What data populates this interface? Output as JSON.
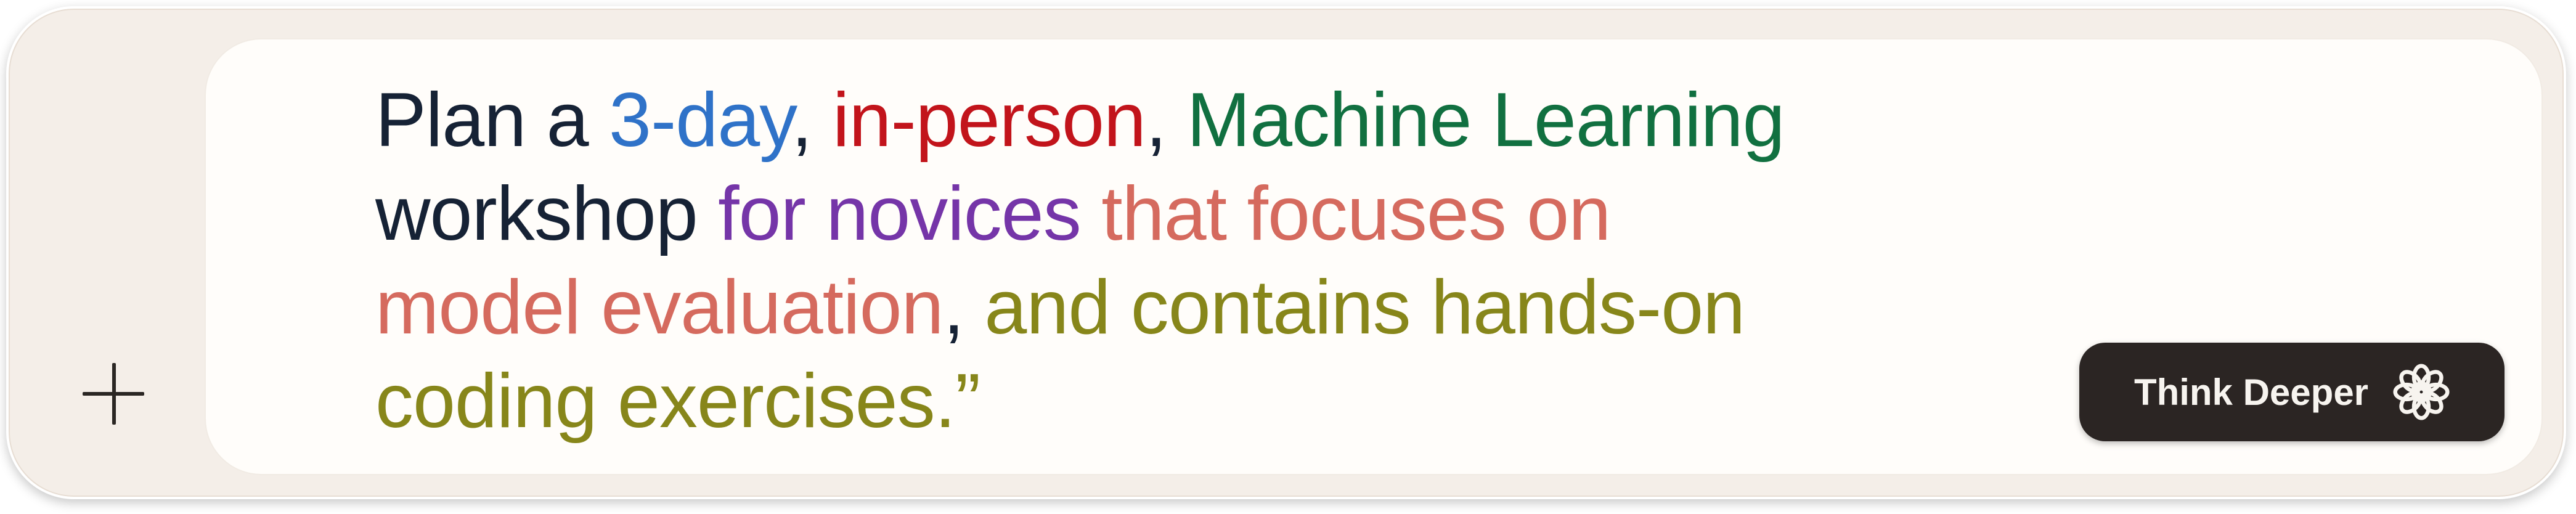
{
  "prompt": {
    "segments": [
      {
        "text": "Plan a ",
        "color": "#162235"
      },
      {
        "text": "3-day",
        "color": "#2f72c8"
      },
      {
        "text": ", ",
        "color": "#162235"
      },
      {
        "text": "in-person",
        "color": "#c2141b"
      },
      {
        "text": ", ",
        "color": "#162235"
      },
      {
        "text": "Machine Learning",
        "color": "#117040"
      },
      {
        "text": "workshop ",
        "color": "#162235"
      },
      {
        "text": "for novices",
        "color": "#7535a8"
      },
      {
        "text": " that focuses on",
        "color": "#d56a5e"
      },
      {
        "text": "model evaluation",
        "color": "#d56a5e"
      },
      {
        "text": ", ",
        "color": "#162235"
      },
      {
        "text": "and contains hands-on",
        "color": "#87861a"
      },
      {
        "text": "coding exercises.”",
        "color": "#87861a"
      }
    ]
  },
  "toolbar": {
    "add_icon": "plus-icon",
    "think_button_label": "Think Deeper",
    "think_icon": "flower-icon"
  }
}
